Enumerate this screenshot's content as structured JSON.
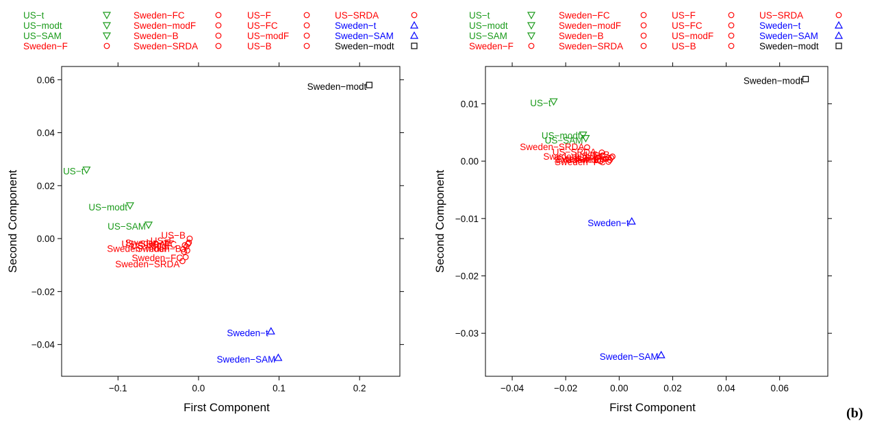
{
  "panel_label": "(b)",
  "colors": {
    "green": "#1a9a1a",
    "red": "#ff0000",
    "blue": "#0000ff",
    "black": "#000000"
  },
  "legend": {
    "columns": [
      [
        {
          "label": "US−t",
          "color": "green",
          "marker": "triangle-down"
        },
        {
          "label": "US−modt",
          "color": "green",
          "marker": "triangle-down"
        },
        {
          "label": "US−SAM",
          "color": "green",
          "marker": "triangle-down"
        },
        {
          "label": "Sweden−F",
          "color": "red",
          "marker": "circle"
        }
      ],
      [
        {
          "label": "Sweden−FC",
          "color": "red",
          "marker": "circle"
        },
        {
          "label": "Sweden−modF",
          "color": "red",
          "marker": "circle"
        },
        {
          "label": "Sweden−B",
          "color": "red",
          "marker": "circle"
        },
        {
          "label": "Sweden−SRDA",
          "color": "red",
          "marker": "circle"
        }
      ],
      [
        {
          "label": "US−F",
          "color": "red",
          "marker": "circle"
        },
        {
          "label": "US−FC",
          "color": "red",
          "marker": "circle"
        },
        {
          "label": "US−modF",
          "color": "red",
          "marker": "circle"
        },
        {
          "label": "US−B",
          "color": "red",
          "marker": "circle"
        }
      ],
      [
        {
          "label": "US−SRDA",
          "color": "red",
          "marker": "circle"
        },
        {
          "label": "Sweden−t",
          "color": "blue",
          "marker": "triangle-up"
        },
        {
          "label": "Sweden−SAM",
          "color": "blue",
          "marker": "triangle-up"
        },
        {
          "label": "Sweden−modt",
          "color": "black",
          "marker": "square"
        }
      ]
    ]
  },
  "chart_data": [
    {
      "type": "scatter",
      "xlabel": "First Component",
      "ylabel": "Second Component",
      "xlim": [
        -0.17,
        0.25
      ],
      "ylim": [
        -0.052,
        0.065
      ],
      "xticks": [
        -0.1,
        0.0,
        0.1,
        0.2
      ],
      "xtick_labels": [
        "−0.1",
        "0.0",
        "0.1",
        "0.2"
      ],
      "yticks": [
        -0.04,
        -0.02,
        0.0,
        0.02,
        0.04,
        0.06
      ],
      "ytick_labels": [
        "−0.04",
        "−0.02",
        "0.00",
        "0.02",
        "0.04",
        "0.06"
      ],
      "grid": false,
      "points": [
        {
          "label": "US−t",
          "x": -0.139,
          "y": 0.026,
          "marker": "triangle-down",
          "color": "green"
        },
        {
          "label": "US−modt",
          "x": -0.085,
          "y": 0.0125,
          "marker": "triangle-down",
          "color": "green"
        },
        {
          "label": "US−SAM",
          "x": -0.062,
          "y": 0.0052,
          "marker": "triangle-down",
          "color": "green"
        },
        {
          "label": "Sweden−F",
          "x": -0.012,
          "y": -0.0015,
          "marker": "circle",
          "color": "red"
        },
        {
          "label": "Sweden−FC",
          "x": -0.016,
          "y": -0.007,
          "marker": "circle",
          "color": "red"
        },
        {
          "label": "Sweden−modF",
          "x": -0.014,
          "y": -0.0045,
          "marker": "circle",
          "color": "red"
        },
        {
          "label": "Sweden−B",
          "x": -0.018,
          "y": -0.005,
          "marker": "circle",
          "color": "red"
        },
        {
          "label": "Sweden−SRDA",
          "x": -0.02,
          "y": -0.0085,
          "marker": "circle",
          "color": "red"
        },
        {
          "label": "US−F",
          "x": -0.013,
          "y": -0.002,
          "marker": "circle",
          "color": "red"
        },
        {
          "label": "US−FC",
          "x": -0.015,
          "y": -0.003,
          "marker": "circle",
          "color": "red"
        },
        {
          "label": "US−modF",
          "x": -0.017,
          "y": -0.0025,
          "marker": "circle",
          "color": "red"
        },
        {
          "label": "US−B",
          "x": -0.011,
          "y": 0.0,
          "marker": "circle",
          "color": "red"
        },
        {
          "label": "US−SRDA",
          "x": -0.019,
          "y": -0.004,
          "marker": "circle",
          "color": "red"
        },
        {
          "label": "Sweden−t",
          "x": 0.09,
          "y": -0.035,
          "marker": "triangle-up",
          "color": "blue"
        },
        {
          "label": "Sweden−SAM",
          "x": 0.099,
          "y": -0.045,
          "marker": "triangle-up",
          "color": "blue"
        },
        {
          "label": "Sweden−modt",
          "x": 0.212,
          "y": 0.058,
          "marker": "square",
          "color": "black"
        }
      ]
    },
    {
      "type": "scatter",
      "xlabel": "First Component",
      "ylabel": "Second Component",
      "xlim": [
        -0.05,
        0.078
      ],
      "ylim": [
        -0.0375,
        0.0165
      ],
      "xticks": [
        -0.04,
        -0.02,
        0.0,
        0.02,
        0.04,
        0.06
      ],
      "xtick_labels": [
        "−0.04",
        "−0.02",
        "0.00",
        "0.02",
        "0.04",
        "0.06"
      ],
      "yticks": [
        -0.03,
        -0.02,
        -0.01,
        0.0,
        0.01
      ],
      "ytick_labels": [
        "−0.03",
        "−0.02",
        "−0.01",
        "0.00",
        "0.01"
      ],
      "grid": false,
      "points": [
        {
          "label": "US−t",
          "x": -0.0245,
          "y": 0.0104,
          "marker": "triangle-down",
          "color": "green"
        },
        {
          "label": "US−modt",
          "x": -0.0135,
          "y": 0.0046,
          "marker": "triangle-down",
          "color": "green"
        },
        {
          "label": "US−SAM",
          "x": -0.0125,
          "y": 0.004,
          "marker": "triangle-down",
          "color": "green"
        },
        {
          "label": "Sweden−F",
          "x": -0.006,
          "y": 0.0003,
          "marker": "circle",
          "color": "red"
        },
        {
          "label": "Sweden−FC",
          "x": -0.004,
          "y": -0.0001,
          "marker": "circle",
          "color": "red"
        },
        {
          "label": "Sweden−modF",
          "x": -0.003,
          "y": 0.0006,
          "marker": "circle",
          "color": "red"
        },
        {
          "label": "Sweden−B",
          "x": -0.007,
          "y": 0.0,
          "marker": "circle",
          "color": "red"
        },
        {
          "label": "Sweden−SRDA",
          "x": -0.012,
          "y": 0.0024,
          "marker": "circle",
          "color": "red"
        },
        {
          "label": "US−F",
          "x": -0.005,
          "y": 0.0004,
          "marker": "circle",
          "color": "red"
        },
        {
          "label": "US−FC",
          "x": -0.004,
          "y": 0.0006,
          "marker": "circle",
          "color": "red"
        },
        {
          "label": "US−modF",
          "x": -0.0035,
          "y": 0.0002,
          "marker": "circle",
          "color": "red"
        },
        {
          "label": "US−B",
          "x": -0.0025,
          "y": 0.0008,
          "marker": "circle",
          "color": "red"
        },
        {
          "label": "US−SRDA",
          "x": -0.0065,
          "y": 0.0015,
          "marker": "circle",
          "color": "red"
        },
        {
          "label": "Sweden−t",
          "x": 0.0047,
          "y": -0.0105,
          "marker": "triangle-up",
          "color": "blue"
        },
        {
          "label": "Sweden−SAM",
          "x": 0.0157,
          "y": -0.0338,
          "marker": "triangle-up",
          "color": "blue"
        },
        {
          "label": "Sweden−modt",
          "x": 0.0697,
          "y": 0.0143,
          "marker": "square",
          "color": "black"
        }
      ]
    }
  ]
}
